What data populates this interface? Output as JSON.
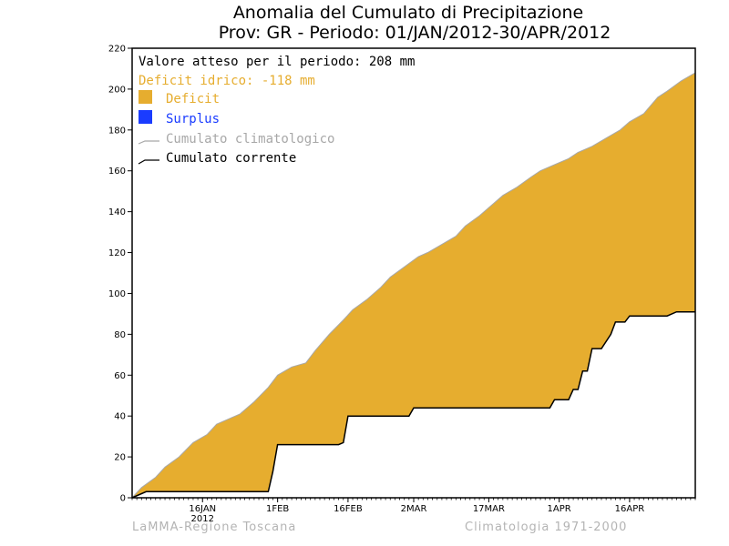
{
  "title_line1": "Anomalia del Cumulato di Precipitazione",
  "title_line2": "Prov: GR - Periodo: 01/JAN/2012-30/APR/2012",
  "legend": {
    "expected": "Valore atteso per il periodo: 208 mm",
    "deficit_value": "Deficit idrico: -118 mm",
    "deficit": "Deficit",
    "surplus": "Surplus",
    "climatological": "Cumulato climatologico",
    "current": "Cumulato corrente"
  },
  "footer": {
    "left": "LaMMA-Regione Toscana",
    "right": "Climatologia 1971-2000"
  },
  "colors": {
    "deficit": "#e6ad2f",
    "surplus": "#1a3cff",
    "climatological": "#a8a8a8",
    "current": "#000000",
    "deficit_text": "#e6ad2f"
  },
  "chart_data": {
    "type": "area",
    "ylim": [
      0,
      220
    ],
    "xlim": [
      1,
      121
    ],
    "y_ticks": [
      0,
      20,
      40,
      60,
      80,
      100,
      120,
      140,
      160,
      180,
      200,
      220
    ],
    "x_ticks": [
      {
        "day": 16,
        "label": "16JAN",
        "sublabel": "2012"
      },
      {
        "day": 32,
        "label": "1FEB"
      },
      {
        "day": 47,
        "label": "16FEB"
      },
      {
        "day": 61,
        "label": "2MAR"
      },
      {
        "day": 77,
        "label": "17MAR"
      },
      {
        "day": 92,
        "label": "1APR"
      },
      {
        "day": 107,
        "label": "16APR"
      }
    ],
    "series": [
      {
        "name": "Cumulato climatologico",
        "x": [
          1,
          3,
          6,
          8,
          11,
          14,
          17,
          19,
          22,
          24,
          27,
          30,
          32,
          35,
          38,
          40,
          43,
          46,
          48,
          51,
          54,
          56,
          59,
          62,
          64,
          67,
          70,
          72,
          75,
          78,
          80,
          83,
          86,
          88,
          91,
          94,
          96,
          99,
          102,
          105,
          107,
          110,
          113,
          115,
          118,
          121
        ],
        "values": [
          0,
          5,
          10,
          15,
          20,
          27,
          31,
          36,
          39,
          41,
          47,
          54,
          60,
          64,
          66,
          72,
          80,
          87,
          92,
          97,
          103,
          108,
          113,
          118,
          120,
          124,
          128,
          133,
          138,
          144,
          148,
          152,
          157,
          160,
          163,
          166,
          169,
          172,
          176,
          180,
          184,
          188,
          196,
          199,
          204,
          208
        ]
      },
      {
        "name": "Cumulato corrente",
        "x": [
          1,
          4,
          5,
          30,
          31,
          32,
          45,
          46,
          47,
          60,
          61,
          90,
          91,
          94,
          95,
          96,
          97,
          98,
          99,
          100,
          101,
          103,
          104,
          106,
          107,
          109,
          110,
          115,
          117,
          121
        ],
        "values": [
          0,
          3,
          3,
          3,
          13,
          26,
          26,
          27,
          40,
          40,
          44,
          44,
          48,
          48,
          53,
          53,
          62,
          62,
          73,
          73,
          73,
          80,
          86,
          86,
          89,
          89,
          89,
          89,
          91,
          91
        ]
      }
    ]
  }
}
